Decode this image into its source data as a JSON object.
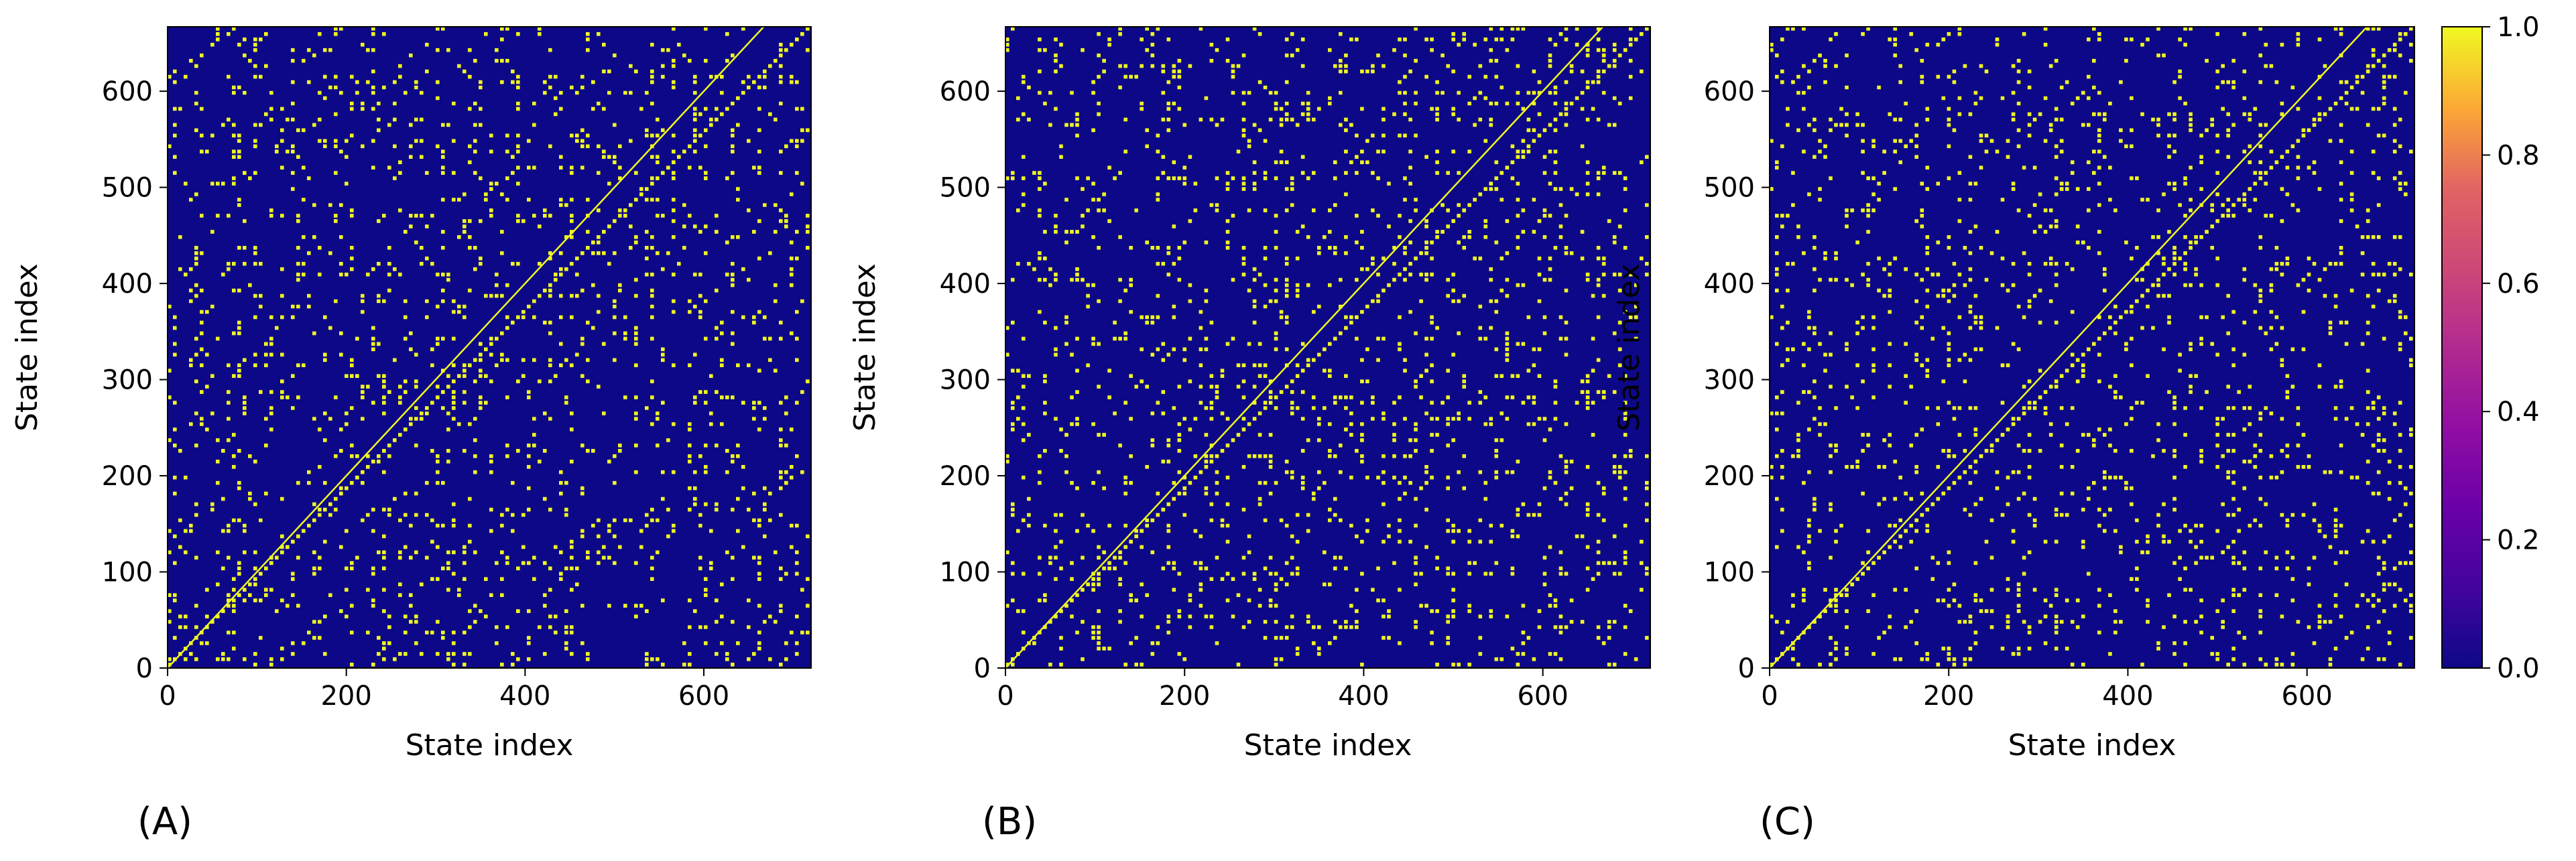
{
  "chart_data": {
    "type": "heatmap",
    "panels": [
      {
        "panel_label": "(A)",
        "xlabel": "State index",
        "ylabel": "State index",
        "xticks": [
          0,
          200,
          400,
          600
        ],
        "yticks": [
          0,
          100,
          200,
          300,
          400,
          500,
          600
        ],
        "xlim": [
          0,
          720
        ],
        "ylim": [
          0,
          667
        ],
        "matrix_description": "binary recurrence matrix, ones along diagonal, sparse yellow blocks elsewhere",
        "seed": 11
      },
      {
        "panel_label": "(B)",
        "xlabel": "State index",
        "ylabel": "State index",
        "xticks": [
          0,
          200,
          400,
          600
        ],
        "yticks": [
          0,
          100,
          200,
          300,
          400,
          500,
          600
        ],
        "xlim": [
          0,
          720
        ],
        "ylim": [
          0,
          667
        ],
        "matrix_description": "binary recurrence matrix, ones along diagonal, sparse yellow blocks elsewhere",
        "seed": 29
      },
      {
        "panel_label": "(C)",
        "xlabel": "State index",
        "ylabel": "State index",
        "xticks": [
          0,
          200,
          400,
          600
        ],
        "yticks": [
          0,
          100,
          200,
          300,
          400,
          500,
          600
        ],
        "xlim": [
          0,
          720
        ],
        "ylim": [
          0,
          667
        ],
        "matrix_description": "binary recurrence matrix, ones along diagonal, sparse yellow blocks elsewhere",
        "seed": 47
      }
    ],
    "colorbar": {
      "colormap": "plasma",
      "ticks": [
        "0.0",
        "0.2",
        "0.4",
        "0.6",
        "0.8",
        "1.0"
      ],
      "range": [
        0.0,
        1.0
      ]
    },
    "colors": {
      "zero": "#0d0887",
      "one": "#f0f921",
      "grid_background": "#0d0887"
    }
  }
}
